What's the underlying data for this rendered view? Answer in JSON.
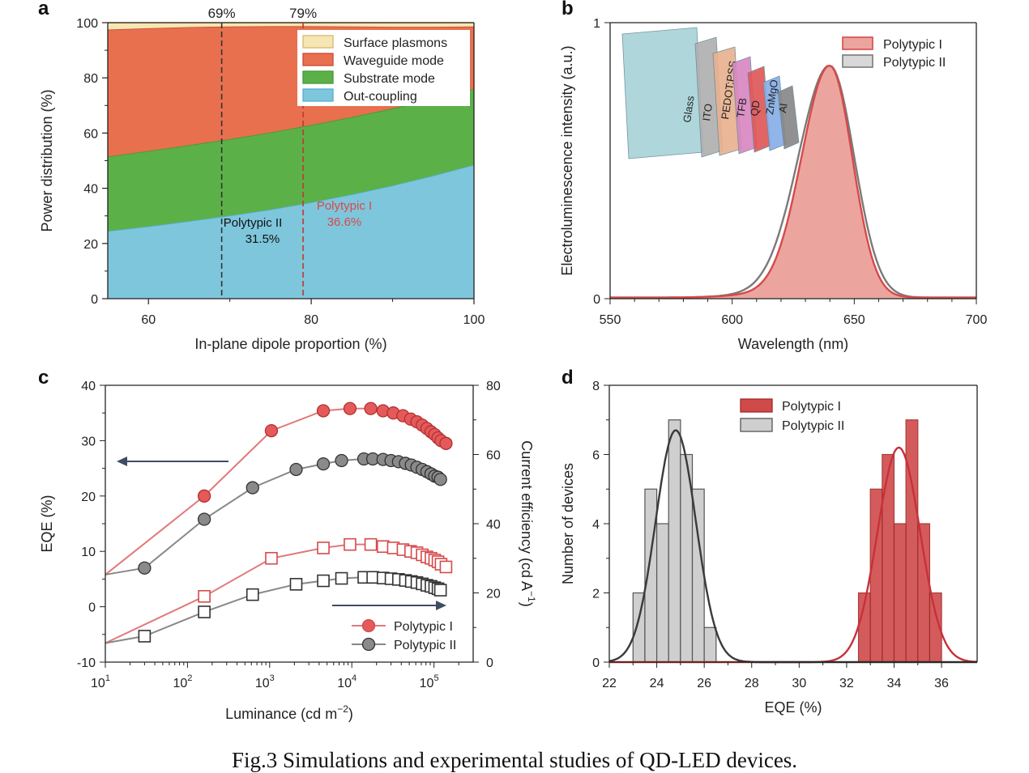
{
  "caption": "Fig.3 Simulations and experimental studies of QD-LED devices.",
  "colors": {
    "red": "#d64a4a",
    "grey": "#555555",
    "plasmon": "#f6e6b4",
    "waveguide": "#e8704f",
    "substrate": "#5cb048",
    "outcoupling": "#7ec6dc"
  },
  "chart_data": [
    {
      "id": "a",
      "panel_label": "a",
      "type": "area",
      "xlabel": "In-plane dipole proportion (%)",
      "ylabel": "Power distribution (%)",
      "xlim": [
        55,
        100
      ],
      "ylim": [
        0,
        100
      ],
      "xticks": [
        60,
        80,
        100
      ],
      "yticks": [
        0,
        20,
        40,
        60,
        80,
        100
      ],
      "x": [
        55,
        60,
        65,
        70,
        75,
        80,
        85,
        90,
        95,
        100
      ],
      "series": [
        {
          "name": "Out-coupling",
          "values": [
            24.5,
            26.2,
            28.1,
            30.1,
            32.3,
            34.9,
            37.8,
            41.0,
            44.6,
            48.5
          ]
        },
        {
          "name": "Substrate mode",
          "values": [
            27.0,
            27.3,
            27.5,
            27.7,
            27.9,
            28.0,
            28.0,
            27.9,
            27.7,
            27.5
          ]
        },
        {
          "name": "Waveguide mode",
          "values": [
            46.0,
            44.5,
            42.8,
            40.8,
            38.5,
            35.8,
            32.8,
            29.6,
            26.2,
            22.6
          ]
        },
        {
          "name": "Surface plasmons",
          "values": [
            2.5,
            2.0,
            1.6,
            1.4,
            1.3,
            1.3,
            1.4,
            1.5,
            1.5,
            1.4
          ]
        }
      ],
      "markers": [
        {
          "x": 69,
          "label": "69%",
          "annotation_lines": [
            "Polytypic II",
            "31.5%"
          ]
        },
        {
          "x": 79,
          "label": "79%",
          "annotation_lines": [
            "Polytypic I",
            "36.6%"
          ]
        }
      ],
      "legend_order": [
        "Surface plasmons",
        "Waveguide mode",
        "Substrate mode",
        "Out-coupling"
      ]
    },
    {
      "id": "b",
      "panel_label": "b",
      "type": "line",
      "xlabel": "Wavelength (nm)",
      "ylabel": "Electroluminescence intensity (a.u.)",
      "xlim": [
        550,
        700
      ],
      "ylim": [
        0,
        1
      ],
      "xticks": [
        550,
        600,
        650,
        700
      ],
      "yticks": [
        0,
        1
      ],
      "series": [
        {
          "name": "Polytypic I",
          "peak": 640,
          "width_left": 11.5,
          "width_right": 9.2,
          "amplitude": 0.84
        },
        {
          "name": "Polytypic II",
          "peak": 640,
          "width_left": 12.8,
          "width_right": 10.0,
          "amplitude": 0.84
        }
      ],
      "inset_layers": [
        "Glass",
        "ITO",
        "PEDOT:PSS",
        "TFB",
        "QD",
        "ZnMgO",
        "Al"
      ]
    },
    {
      "id": "c",
      "panel_label": "c",
      "type": "scatter",
      "xlabel": "Luminance (cd m",
      "xlabel_sup": "−2",
      "xlabel_end": ")",
      "ylabel": "EQE (%)",
      "y2label": "Current efficiency (cd A",
      "y2label_sup": "−1",
      "y2label_end": ")",
      "xscale": "log",
      "xlim": [
        10,
        300000
      ],
      "ylim": [
        -10,
        40
      ],
      "y2lim": [
        0,
        80
      ],
      "xticks": [
        {
          "base": "10",
          "exp": "1"
        },
        {
          "base": "10",
          "exp": "2"
        },
        {
          "base": "10",
          "exp": "3"
        },
        {
          "base": "10",
          "exp": "4"
        },
        {
          "base": "10",
          "exp": "5"
        }
      ],
      "yticks": [
        -10,
        0,
        10,
        20,
        30,
        40
      ],
      "y2ticks": [
        0,
        20,
        40,
        60,
        80
      ],
      "eqe_series": [
        {
          "name": "Polytypic I",
          "x": [
            160,
            1050,
            4500,
            9500,
            17000,
            24000,
            32000,
            42000,
            52000,
            62000,
            72000,
            82000,
            92000,
            102000,
            112000,
            122000,
            140000
          ],
          "values": [
            20.0,
            31.8,
            35.4,
            35.8,
            35.8,
            35.4,
            35.0,
            34.5,
            33.9,
            33.4,
            32.8,
            32.2,
            31.6,
            31.1,
            30.5,
            30.0,
            29.5
          ]
        },
        {
          "name": "Polytypic II",
          "x": [
            30,
            160,
            620,
            2100,
            4500,
            7500,
            14000,
            18000,
            24000,
            30000,
            37000,
            45000,
            53000,
            62000,
            72000,
            82000,
            92000,
            102000,
            112000,
            120000
          ],
          "values": [
            7.0,
            15.8,
            21.5,
            24.8,
            25.8,
            26.4,
            26.7,
            26.7,
            26.6,
            26.4,
            26.2,
            25.9,
            25.6,
            25.2,
            24.8,
            24.4,
            24.0,
            23.6,
            23.4,
            23.0
          ]
        }
      ],
      "ce_series": [
        {
          "name": "Polytypic I",
          "x": [
            160,
            1050,
            4500,
            9500,
            17000,
            24000,
            32000,
            42000,
            52000,
            62000,
            72000,
            82000,
            92000,
            102000,
            112000,
            122000,
            140000
          ],
          "values": [
            19,
            30,
            33,
            34,
            34,
            33.4,
            33,
            32.5,
            32,
            31.6,
            31,
            30.4,
            30,
            29.5,
            29,
            28.3,
            27.5
          ]
        },
        {
          "name": "Polytypic II",
          "x": [
            30,
            160,
            620,
            2100,
            4500,
            7500,
            14000,
            18000,
            24000,
            30000,
            37000,
            45000,
            53000,
            62000,
            72000,
            82000,
            92000,
            102000,
            112000,
            120000
          ],
          "values": [
            7.5,
            14.5,
            19.5,
            22.5,
            23.5,
            24.2,
            24.5,
            24.5,
            24.3,
            24.1,
            23.9,
            23.6,
            23.3,
            23.0,
            22.6,
            22.2,
            21.9,
            21.5,
            21.2,
            20.8
          ]
        }
      ],
      "legend": [
        "Polytypic I",
        "Polytypic II"
      ]
    },
    {
      "id": "d",
      "panel_label": "d",
      "type": "bar",
      "xlabel": "EQE (%)",
      "ylabel": "Number of devices",
      "xlim": [
        22,
        37.5
      ],
      "ylim": [
        0,
        8
      ],
      "xticks": [
        22,
        24,
        26,
        28,
        30,
        32,
        34,
        36
      ],
      "yticks": [
        0,
        2,
        4,
        6,
        8
      ],
      "bin_width": 0.5,
      "series": [
        {
          "name": "Polytypic I",
          "bins": [
            32.5,
            33.0,
            33.5,
            34.0,
            34.5,
            35.0,
            35.5
          ],
          "counts": [
            2,
            5,
            6,
            4,
            7,
            4,
            2
          ],
          "fit_mean": 34.2,
          "fit_sd": 0.9,
          "fit_peak": 6.2
        },
        {
          "name": "Polytypic II",
          "bins": [
            23.0,
            23.5,
            24.0,
            24.5,
            25.0,
            25.5,
            26.0
          ],
          "counts": [
            2,
            5,
            4,
            7,
            6,
            5,
            1
          ],
          "fit_mean": 24.8,
          "fit_sd": 0.85,
          "fit_peak": 6.7
        }
      ]
    }
  ]
}
